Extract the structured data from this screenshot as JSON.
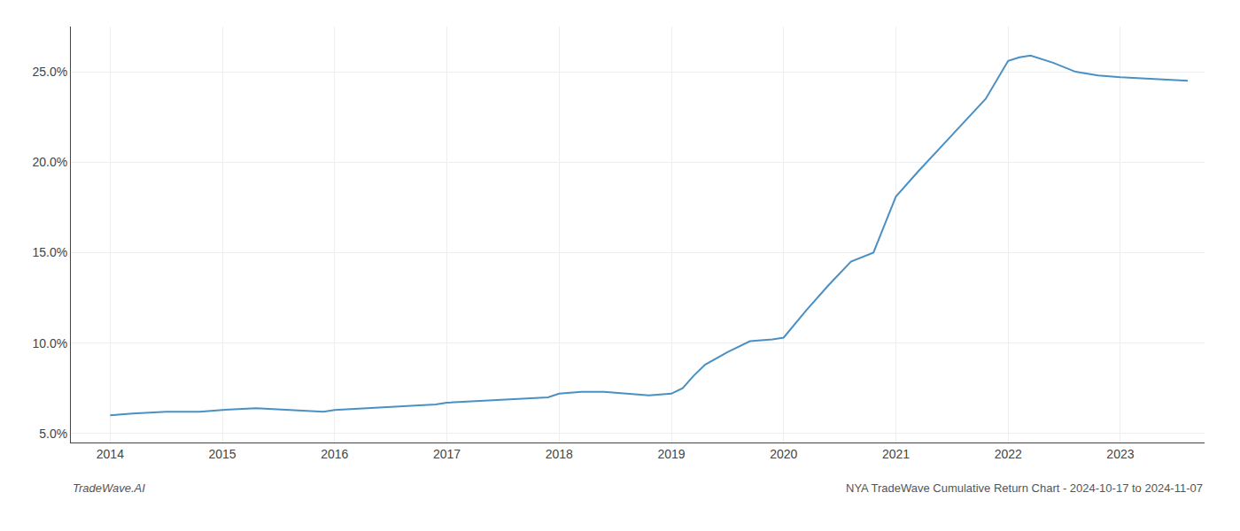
{
  "chart_data": {
    "type": "line",
    "title": "NYA TradeWave Cumulative Return Chart - 2024-10-17 to 2024-11-07",
    "annotations": [
      "TradeWave.AI"
    ],
    "x": [
      2014.0,
      2014.2,
      2014.5,
      2014.8,
      2015.0,
      2015.3,
      2015.6,
      2015.9,
      2016.0,
      2016.3,
      2016.6,
      2016.9,
      2017.0,
      2017.3,
      2017.6,
      2017.9,
      2018.0,
      2018.2,
      2018.4,
      2018.6,
      2018.8,
      2019.0,
      2019.1,
      2019.2,
      2019.3,
      2019.5,
      2019.7,
      2019.9,
      2020.0,
      2020.2,
      2020.4,
      2020.6,
      2020.8,
      2021.0,
      2021.2,
      2021.5,
      2021.8,
      2022.0,
      2022.1,
      2022.2,
      2022.4,
      2022.6,
      2022.8,
      2023.0,
      2023.3,
      2023.6
    ],
    "values": [
      6.0,
      6.1,
      6.2,
      6.2,
      6.3,
      6.4,
      6.3,
      6.2,
      6.3,
      6.4,
      6.5,
      6.6,
      6.7,
      6.8,
      6.9,
      7.0,
      7.2,
      7.3,
      7.3,
      7.2,
      7.1,
      7.2,
      7.5,
      8.2,
      8.8,
      9.5,
      10.1,
      10.2,
      10.3,
      11.8,
      13.2,
      14.5,
      15.0,
      18.1,
      19.5,
      21.5,
      23.5,
      25.6,
      25.8,
      25.9,
      25.5,
      25.0,
      24.8,
      24.7,
      24.6,
      24.5
    ],
    "color": "#4a90c4",
    "xlim": [
      2013.65,
      2023.75
    ],
    "xticks": [
      2014,
      2015,
      2016,
      2017,
      2018,
      2019,
      2020,
      2021,
      2022,
      2023
    ],
    "ylim": [
      4.5,
      27.5
    ],
    "yticks": [
      {
        "value": 5.0,
        "label": "5.0%"
      },
      {
        "value": 10.0,
        "label": "10.0%"
      },
      {
        "value": 15.0,
        "label": "15.0%"
      },
      {
        "value": 20.0,
        "label": "20.0%"
      },
      {
        "value": 25.0,
        "label": "25.0%"
      }
    ],
    "grid": true
  }
}
